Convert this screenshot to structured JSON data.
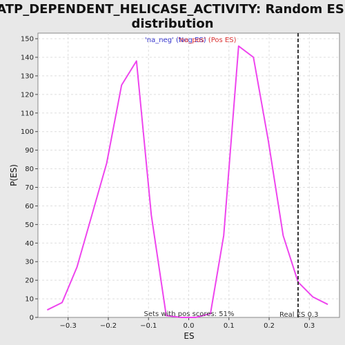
{
  "chart_data": {
    "type": "line",
    "title_line1": "ATP_DEPENDENT_HELICASE_ACTIVITY: Random ES",
    "title_line2": "distribution",
    "xlabel": "ES",
    "ylabel": "P(ES)",
    "xlim": [
      -0.375,
      0.375
    ],
    "ylim": [
      0,
      153
    ],
    "xticks": [
      -0.3,
      -0.2,
      -0.1,
      0.0,
      0.1,
      0.2,
      0.3
    ],
    "xtick_labels": [
      "−0.3",
      "−0.2",
      "−0.1",
      "0.0",
      "0.1",
      "0.2",
      "0.3"
    ],
    "yticks": [
      0,
      10,
      20,
      30,
      40,
      50,
      60,
      70,
      80,
      90,
      100,
      110,
      120,
      130,
      140,
      150
    ],
    "grid": true,
    "legend": {
      "placement": "top-center",
      "neg_label": "'na_neg' (Neg ES)",
      "pos_label": "'na_pos' (Pos ES)"
    },
    "series": [
      {
        "color": "#ee44ee",
        "x": [
          -0.352,
          -0.315,
          -0.278,
          -0.241,
          -0.204,
          -0.167,
          -0.13,
          -0.093,
          -0.056,
          -0.019,
          0.017,
          0.054,
          0.087,
          0.124,
          0.161,
          0.198,
          0.235,
          0.272,
          0.309,
          0.346
        ],
        "y": [
          4,
          8,
          27,
          55,
          83,
          125,
          138,
          55,
          1,
          0,
          0,
          2,
          44,
          146,
          140,
          95,
          44,
          19,
          11,
          7
        ]
      }
    ],
    "real_es": {
      "x": 0.272,
      "label": "Real ES 0.3"
    },
    "annotation": "Sets with pos scores: 51%"
  },
  "colors": {
    "background": "#e8e8e8",
    "plot_background": "#ffffff",
    "grid": "#dddddd",
    "line": "#ee44ee",
    "real_es_line": "#333333"
  }
}
